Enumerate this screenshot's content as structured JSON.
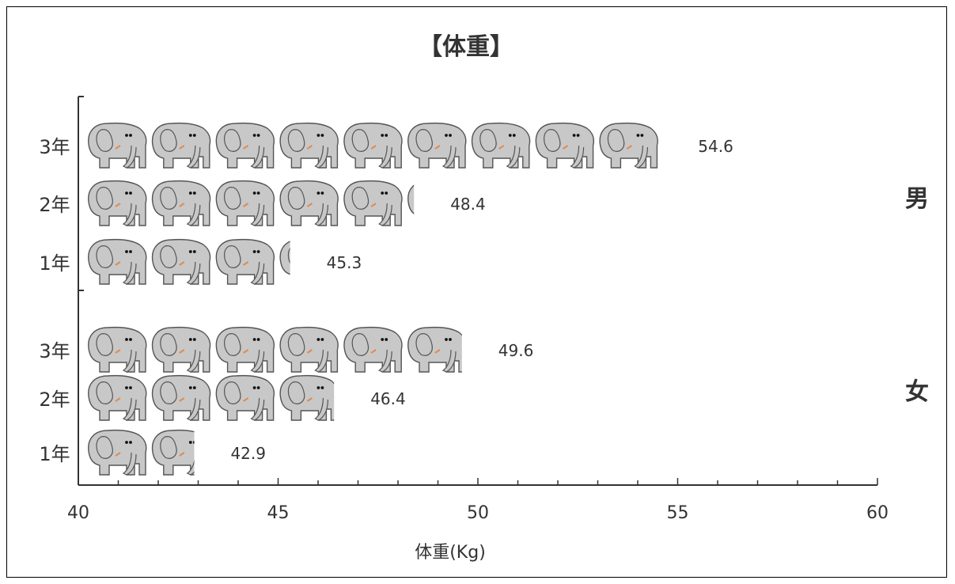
{
  "chart_data": {
    "type": "bar",
    "orientation": "horizontal",
    "title": "【体重】",
    "xlabel": "体重(Kg)",
    "xlim": [
      40,
      60
    ],
    "x_ticks": [
      40,
      45,
      50,
      55,
      60
    ],
    "x_minor_step": 1,
    "groups": [
      {
        "name": "男",
        "categories": [
          "3年",
          "2年",
          "1年"
        ],
        "values": [
          54.6,
          48.4,
          45.3
        ]
      },
      {
        "name": "女",
        "categories": [
          "3年",
          "2年",
          "1年"
        ],
        "values": [
          49.6,
          46.4,
          42.9
        ]
      }
    ],
    "unit_per_icon": 1.6,
    "icon": "elephant-icon",
    "colors": {
      "icon_fill": "#c8c8c8",
      "icon_stroke": "#555555",
      "axis": "#333333"
    }
  }
}
